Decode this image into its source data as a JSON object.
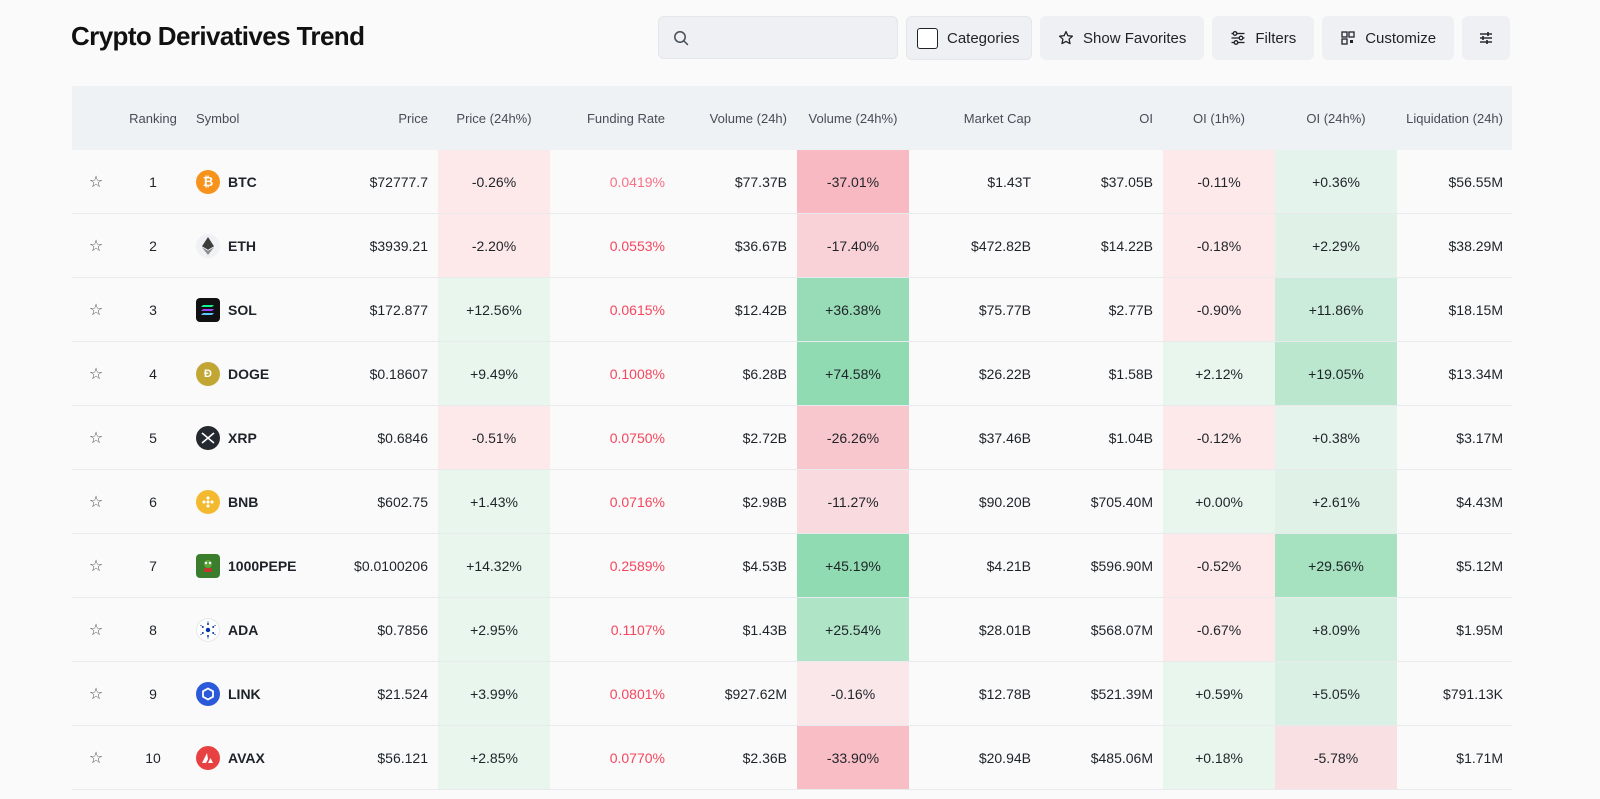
{
  "title": "Crypto Derivatives Trend",
  "toolbar": {
    "search_placeholder": "",
    "categories": "Categories",
    "show_favorites": "Show Favorites",
    "filters": "Filters",
    "customize": "Customize"
  },
  "headers": {
    "ranking": "Ranking",
    "symbol": "Symbol",
    "price": "Price",
    "price24": "Price (24h%)",
    "funding": "Funding Rate",
    "volume": "Volume (24h)",
    "volume24": "Volume (24h%)",
    "mcap": "Market Cap",
    "oi": "OI",
    "oi1": "OI (1h%)",
    "oi24": "OI (24h%)",
    "liq": "Liquidation (24h)"
  },
  "rows": [
    {
      "rank": "1",
      "symbol": "BTC",
      "icon": "bitcoin-icon",
      "price": "$72777.7",
      "price24": "-0.26%",
      "funding": "0.0419%",
      "volume": "$77.37B",
      "volume24": "-37.01%",
      "mcap": "$1.43T",
      "oi": "$37.05B",
      "oi1": "-0.11%",
      "oi24": "+0.36%",
      "liq": "$56.55M"
    },
    {
      "rank": "2",
      "symbol": "ETH",
      "icon": "ethereum-icon",
      "price": "$3939.21",
      "price24": "-2.20%",
      "funding": "0.0553%",
      "volume": "$36.67B",
      "volume24": "-17.40%",
      "mcap": "$472.82B",
      "oi": "$14.22B",
      "oi1": "-0.18%",
      "oi24": "+2.29%",
      "liq": "$38.29M"
    },
    {
      "rank": "3",
      "symbol": "SOL",
      "icon": "solana-icon",
      "price": "$172.877",
      "price24": "+12.56%",
      "funding": "0.0615%",
      "volume": "$12.42B",
      "volume24": "+36.38%",
      "mcap": "$75.77B",
      "oi": "$2.77B",
      "oi1": "-0.90%",
      "oi24": "+11.86%",
      "liq": "$18.15M"
    },
    {
      "rank": "4",
      "symbol": "DOGE",
      "icon": "dogecoin-icon",
      "price": "$0.18607",
      "price24": "+9.49%",
      "funding": "0.1008%",
      "volume": "$6.28B",
      "volume24": "+74.58%",
      "mcap": "$26.22B",
      "oi": "$1.58B",
      "oi1": "+2.12%",
      "oi24": "+19.05%",
      "liq": "$13.34M"
    },
    {
      "rank": "5",
      "symbol": "XRP",
      "icon": "xrp-icon",
      "price": "$0.6846",
      "price24": "-0.51%",
      "funding": "0.0750%",
      "volume": "$2.72B",
      "volume24": "-26.26%",
      "mcap": "$37.46B",
      "oi": "$1.04B",
      "oi1": "-0.12%",
      "oi24": "+0.38%",
      "liq": "$3.17M"
    },
    {
      "rank": "6",
      "symbol": "BNB",
      "icon": "bnb-icon",
      "price": "$602.75",
      "price24": "+1.43%",
      "funding": "0.0716%",
      "volume": "$2.98B",
      "volume24": "-11.27%",
      "mcap": "$90.20B",
      "oi": "$705.40M",
      "oi1": "+0.00%",
      "oi24": "+2.61%",
      "liq": "$4.43M"
    },
    {
      "rank": "7",
      "symbol": "1000PEPE",
      "icon": "pepe-icon",
      "price": "$0.0100206",
      "price24": "+14.32%",
      "funding": "0.2589%",
      "volume": "$4.53B",
      "volume24": "+45.19%",
      "mcap": "$4.21B",
      "oi": "$596.90M",
      "oi1": "-0.52%",
      "oi24": "+29.56%",
      "liq": "$5.12M"
    },
    {
      "rank": "8",
      "symbol": "ADA",
      "icon": "cardano-icon",
      "price": "$0.7856",
      "price24": "+2.95%",
      "funding": "0.1107%",
      "volume": "$1.43B",
      "volume24": "+25.54%",
      "mcap": "$28.01B",
      "oi": "$568.07M",
      "oi1": "-0.67%",
      "oi24": "+8.09%",
      "liq": "$1.95M"
    },
    {
      "rank": "9",
      "symbol": "LINK",
      "icon": "chainlink-icon",
      "price": "$21.524",
      "price24": "+3.99%",
      "funding": "0.0801%",
      "volume": "$927.62M",
      "volume24": "-0.16%",
      "mcap": "$12.78B",
      "oi": "$521.39M",
      "oi1": "+0.59%",
      "oi24": "+5.05%",
      "liq": "$791.13K"
    },
    {
      "rank": "10",
      "symbol": "AVAX",
      "icon": "avalanche-icon",
      "price": "$56.121",
      "price24": "+2.85%",
      "funding": "0.0770%",
      "volume": "$2.36B",
      "volume24": "-33.90%",
      "mcap": "$20.94B",
      "oi": "$485.06M",
      "oi1": "+0.18%",
      "oi24": "-5.78%",
      "liq": "$1.71M"
    }
  ],
  "colors": {
    "negative_text": "#f6465d",
    "positive_bg": "#e3f5ea",
    "negative_bg": "#fde8e8"
  }
}
